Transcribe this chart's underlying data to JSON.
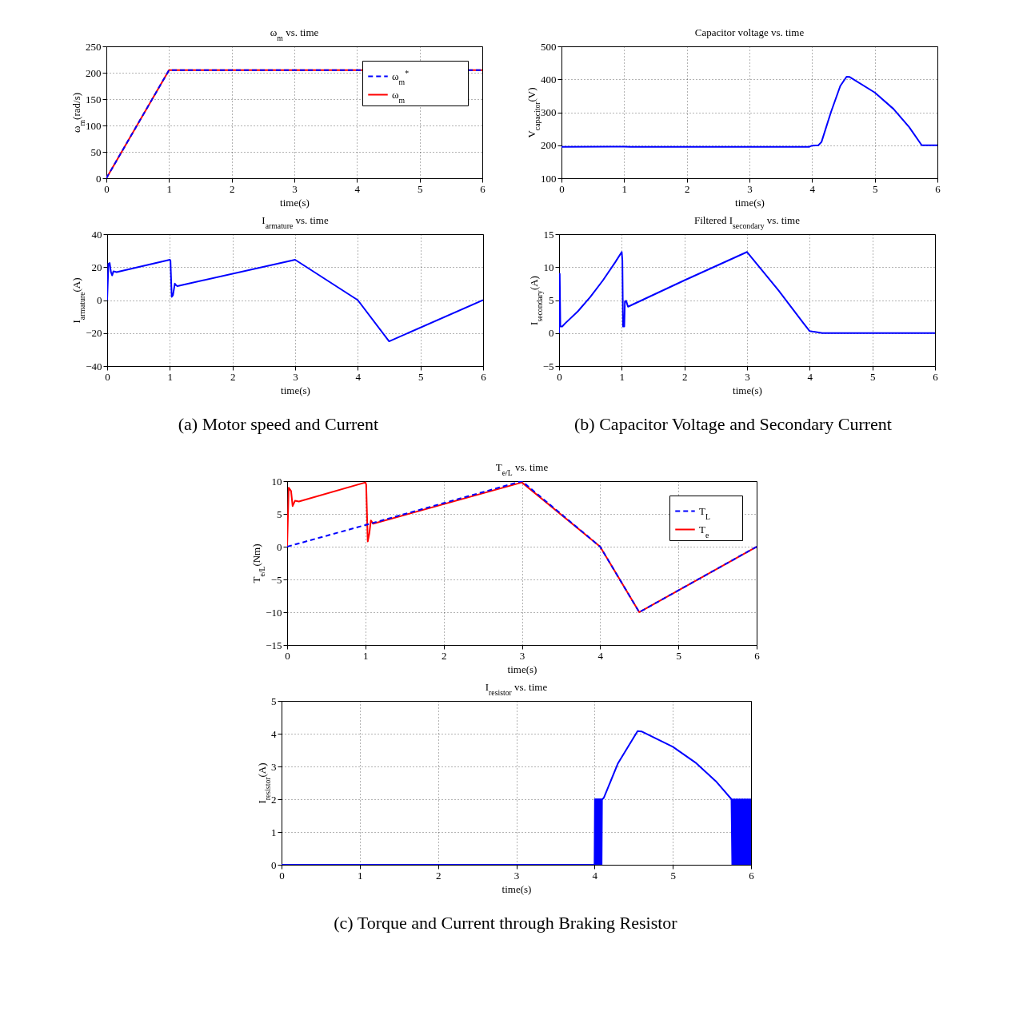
{
  "chart_data": [
    {
      "type": "line",
      "title": "ω$_{m}$ vs. time",
      "xlabel": "time(s)",
      "ylabel": "ω$_{m}$(rad/s)",
      "xlim": [
        0,
        6
      ],
      "xticks": [
        0,
        1,
        2,
        3,
        4,
        5,
        6
      ],
      "ylim": [
        0,
        250
      ],
      "yticks": [
        0,
        50,
        100,
        150,
        200,
        250
      ],
      "grid": true,
      "legend": "top right",
      "series": [
        {
          "name": "ω$_{m}$$^{*}$",
          "color": "#0000ff",
          "line_style": "dashed",
          "x": [
            0,
            1,
            6
          ],
          "values": [
            0,
            205,
            205
          ]
        },
        {
          "name": "ω$_{m}$",
          "color": "#ff0000",
          "line_style": "solid",
          "x": [
            0,
            1,
            6
          ],
          "values": [
            0,
            205,
            205
          ]
        }
      ]
    },
    {
      "type": "line",
      "title": "I$_{armature}$ vs. time",
      "xlabel": "time(s)",
      "ylabel": "I$_{armature}$(A)",
      "xlim": [
        0,
        6
      ],
      "xticks": [
        0,
        1,
        2,
        3,
        4,
        5,
        6
      ],
      "ylim": [
        -40,
        40
      ],
      "yticks": [
        -40,
        -20,
        0,
        20,
        40
      ],
      "grid": true,
      "annotations": [
        "(a)  Motor speed and Current"
      ],
      "series": [
        {
          "color": "#0000ff",
          "x": [
            0,
            0.02,
            0.04,
            0.06,
            0.08,
            0.1,
            0.15,
            1.0,
            1.01,
            1.03,
            1.05,
            1.08,
            1.1,
            1.12,
            3,
            4,
            4.5,
            6
          ],
          "values": [
            0,
            22,
            22.5,
            17,
            15,
            17.5,
            17,
            24.5,
            24,
            2,
            3,
            10,
            9,
            8.5,
            24.5,
            0,
            -25,
            0
          ]
        }
      ]
    },
    {
      "type": "line",
      "title": "Capacitor voltage vs. time",
      "xlabel": "time(s)",
      "ylabel": "V$_{capacitor}$(V)",
      "xlim": [
        0,
        6
      ],
      "xticks": [
        0,
        1,
        2,
        3,
        4,
        5,
        6
      ],
      "ylim": [
        100,
        500
      ],
      "yticks": [
        100,
        200,
        300,
        400,
        500
      ],
      "grid": true,
      "series": [
        {
          "color": "#0000ff",
          "x": [
            0,
            1,
            1.1,
            3.95,
            4.0,
            4.1,
            4.15,
            4.3,
            4.45,
            4.55,
            4.6,
            5,
            5.3,
            5.55,
            5.75,
            6
          ],
          "values": [
            195,
            196,
            195,
            195,
            199,
            200,
            210,
            300,
            380,
            408,
            407,
            360,
            310,
            255,
            200,
            200
          ]
        }
      ]
    },
    {
      "type": "line",
      "title": "Filtered I$_{secondary}$ vs. time",
      "xlabel": "time(s)",
      "ylabel": "I$_{secondary}$(A)",
      "xlim": [
        0,
        6
      ],
      "xticks": [
        0,
        1,
        2,
        3,
        4,
        5,
        6
      ],
      "ylim": [
        -5,
        15
      ],
      "yticks": [
        -5,
        0,
        5,
        10,
        15
      ],
      "grid": true,
      "annotations": [
        "(b)  Capacitor Voltage and Secondary Current"
      ],
      "series": [
        {
          "color": "#0000ff",
          "x": [
            0,
            0.01,
            0.02,
            0.05,
            0.1,
            0.3,
            0.5,
            0.7,
            0.9,
            1.0,
            1.01,
            1.02,
            1.04,
            1.05,
            1.07,
            1.1,
            2,
            3,
            3.5,
            3.9,
            4,
            4.2,
            6
          ],
          "values": [
            0,
            9,
            1,
            1,
            1.5,
            3.3,
            5.5,
            8,
            10.8,
            12.3,
            11,
            1,
            1,
            4.8,
            4.9,
            4,
            8,
            12.3,
            6.5,
            1.5,
            0.3,
            0,
            0
          ]
        }
      ]
    },
    {
      "type": "line",
      "title": "T$_{e/L}$ vs. time",
      "xlabel": "time(s)",
      "ylabel": "T$_{e/L}$(Nm)",
      "xlim": [
        0,
        6
      ],
      "xticks": [
        0,
        1,
        2,
        3,
        4,
        5,
        6
      ],
      "ylim": [
        -15,
        10
      ],
      "yticks": [
        -15,
        -10,
        -5,
        0,
        5,
        10
      ],
      "grid": true,
      "legend": "top right",
      "series": [
        {
          "name": "T$_{L}$",
          "color": "#0000ff",
          "line_style": "dashed",
          "x": [
            0,
            1,
            3,
            4,
            4.5,
            6
          ],
          "values": [
            0,
            3.3,
            10,
            0,
            -10,
            0
          ]
        },
        {
          "name": "T$_{e}$",
          "color": "#ff0000",
          "line_style": "solid",
          "x": [
            0,
            0.02,
            0.05,
            0.07,
            0.1,
            0.15,
            1,
            1.01,
            1.03,
            1.05,
            1.07,
            1.1,
            3,
            4,
            4.5,
            6
          ],
          "values": [
            0,
            9,
            8.5,
            6.2,
            7,
            6.9,
            9.8,
            9.5,
            0.8,
            2,
            4,
            3.5,
            9.8,
            0,
            -10,
            0
          ]
        }
      ]
    },
    {
      "type": "line",
      "title": "I$_{resistor}$ vs. time",
      "xlabel": "time(s)",
      "ylabel": "I$_{resistor}$(A)",
      "xlim": [
        0,
        6
      ],
      "xticks": [
        0,
        1,
        2,
        3,
        4,
        5,
        6
      ],
      "ylim": [
        0,
        5
      ],
      "yticks": [
        0,
        1,
        2,
        3,
        4,
        5
      ],
      "grid": true,
      "annotations": [
        "(c)  Torque and Current through Braking Resistor"
      ],
      "series": [
        {
          "color": "#0000ff",
          "x": [
            0,
            4.0,
            4.005,
            4.01,
            4.015,
            4.02,
            4.025,
            4.03,
            4.035,
            4.04,
            4.045,
            4.05,
            4.055,
            4.06,
            4.065,
            4.07,
            4.075,
            4.08,
            4.085,
            4.09,
            4.095,
            4.1,
            4.12,
            4.3,
            4.55,
            4.6,
            5,
            5.3,
            5.55,
            5.75,
            5.76,
            5.77,
            5.78,
            5.79,
            5.8,
            5.81,
            5.82,
            5.83,
            5.84,
            5.85,
            5.86,
            5.87,
            5.88,
            5.89,
            5.9,
            5.91,
            5.92,
            5.93,
            5.94,
            5.95,
            5.96,
            5.97,
            5.98,
            5.99,
            6
          ],
          "values": [
            0,
            0,
            2,
            0,
            2,
            0,
            2,
            0,
            2,
            0,
            2,
            0,
            2,
            0,
            2,
            0,
            2,
            0,
            2,
            0,
            2,
            2,
            2.05,
            3.1,
            4.08,
            4.07,
            3.6,
            3.1,
            2.55,
            2,
            0,
            2,
            0,
            2,
            0,
            2,
            0,
            2,
            0,
            2,
            0,
            2,
            0,
            2,
            0,
            2,
            0,
            2,
            0,
            2,
            0,
            2,
            0,
            2,
            0
          ]
        }
      ]
    }
  ]
}
